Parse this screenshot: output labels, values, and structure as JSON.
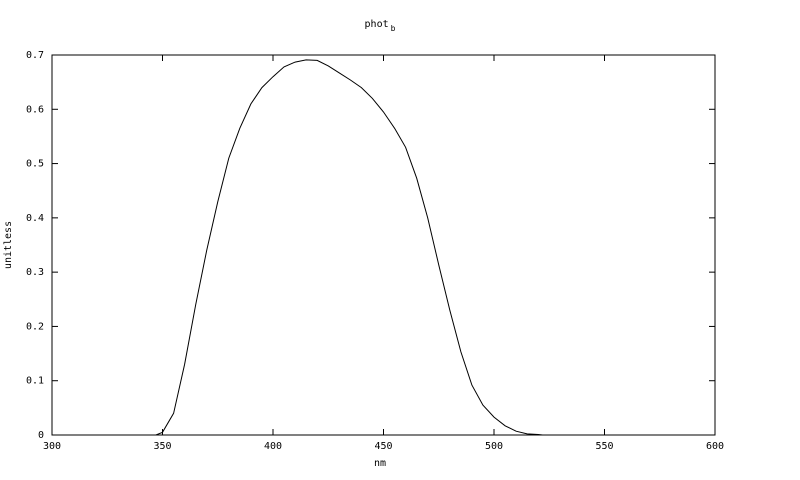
{
  "chart_data": {
    "type": "line",
    "title": "phot",
    "title_subscript": "b",
    "xlabel": "nm",
    "ylabel": "unitless",
    "xlim": [
      300,
      600
    ],
    "ylim": [
      0,
      0.7
    ],
    "xticks": [
      "300",
      "350",
      "400",
      "450",
      "500",
      "550",
      "600"
    ],
    "yticks": [
      "0",
      "0.1",
      "0.2",
      "0.3",
      "0.4",
      "0.5",
      "0.6",
      "0.7"
    ],
    "grid": false,
    "legend": "none",
    "line_color": "#000000",
    "x": [
      300,
      347,
      350,
      355,
      360,
      365,
      370,
      375,
      380,
      385,
      390,
      395,
      400,
      405,
      410,
      415,
      420,
      425,
      430,
      435,
      440,
      445,
      450,
      455,
      460,
      465,
      470,
      475,
      480,
      485,
      490,
      495,
      500,
      505,
      510,
      515,
      520,
      522
    ],
    "y": [
      0,
      0,
      0.005,
      0.04,
      0.13,
      0.24,
      0.34,
      0.43,
      0.51,
      0.565,
      0.61,
      0.64,
      0.66,
      0.678,
      0.687,
      0.691,
      0.69,
      0.68,
      0.667,
      0.654,
      0.64,
      0.62,
      0.595,
      0.565,
      0.53,
      0.473,
      0.4,
      0.313,
      0.23,
      0.153,
      0.092,
      0.055,
      0.033,
      0.017,
      0.007,
      0.002,
      0.001,
      0
    ]
  }
}
